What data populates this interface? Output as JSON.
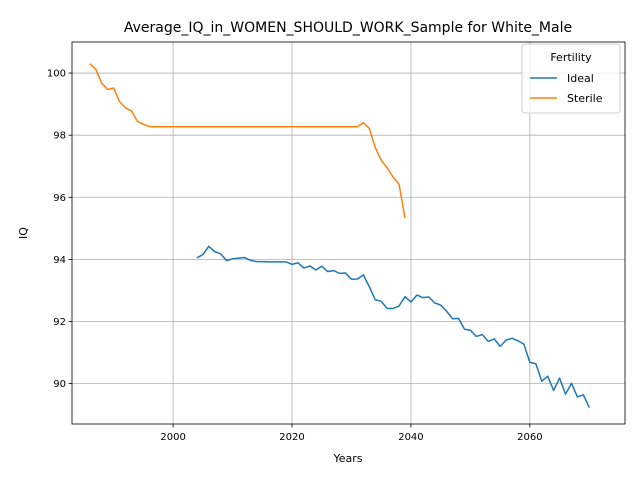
{
  "chart_data": {
    "type": "line",
    "title": "Average_IQ_in_WOMEN_SHOULD_WORK_Sample for White_Male",
    "xlabel": "Years",
    "ylabel": "IQ",
    "xlim": [
      1983,
      2076
    ],
    "ylim": [
      88.7,
      101.0
    ],
    "xticks": [
      2000,
      2020,
      2040,
      2060
    ],
    "yticks": [
      90,
      92,
      94,
      96,
      98,
      100
    ],
    "grid": true,
    "legend": {
      "title": "Fertility",
      "position": "top-right"
    },
    "colors": {
      "Ideal": "#1f77b4",
      "Sterile": "#ff7f0e"
    },
    "series": [
      {
        "name": "Ideal",
        "x": [
          2004,
          2005,
          2006,
          2007,
          2008,
          2009,
          2010,
          2011,
          2012,
          2013,
          2014,
          2015,
          2016,
          2017,
          2018,
          2019,
          2020,
          2021,
          2022,
          2023,
          2024,
          2025,
          2026,
          2027,
          2028,
          2029,
          2030,
          2031,
          2032,
          2033,
          2034,
          2035,
          2036,
          2037,
          2038,
          2039,
          2040,
          2041,
          2042,
          2043,
          2044,
          2045,
          2046,
          2047,
          2048,
          2049,
          2050,
          2051,
          2052,
          2053,
          2054,
          2055,
          2056,
          2057,
          2058,
          2059,
          2060,
          2061,
          2062,
          2063,
          2064,
          2065,
          2066,
          2067,
          2068,
          2069,
          2070
        ],
        "y": [
          94.05,
          94.15,
          94.42,
          94.25,
          94.18,
          93.96,
          94.02,
          94.04,
          94.06,
          93.97,
          93.93,
          93.93,
          93.92,
          93.92,
          93.92,
          93.92,
          93.84,
          93.89,
          93.72,
          93.79,
          93.66,
          93.78,
          93.61,
          93.64,
          93.55,
          93.56,
          93.36,
          93.37,
          93.5,
          93.12,
          92.7,
          92.65,
          92.42,
          92.42,
          92.5,
          92.8,
          92.63,
          92.85,
          92.77,
          92.79,
          92.6,
          92.53,
          92.33,
          92.09,
          92.1,
          91.75,
          91.72,
          91.52,
          91.58,
          91.36,
          91.44,
          91.2,
          91.4,
          91.46,
          91.38,
          91.27,
          90.68,
          90.64,
          90.08,
          90.24,
          89.78,
          90.18,
          89.66,
          90.01,
          89.57,
          89.64,
          89.23
        ]
      },
      {
        "name": "Sterile",
        "x": [
          1986,
          1987,
          1988,
          1989,
          1990,
          1991,
          1992,
          1993,
          1994,
          1995,
          1996,
          1997,
          1998,
          1999,
          2000,
          2001,
          2002,
          2003,
          2004,
          2005,
          2006,
          2007,
          2008,
          2009,
          2010,
          2011,
          2012,
          2013,
          2014,
          2015,
          2016,
          2017,
          2018,
          2019,
          2020,
          2021,
          2022,
          2023,
          2024,
          2025,
          2026,
          2027,
          2028,
          2029,
          2030,
          2031,
          2032,
          2033,
          2034,
          2035,
          2036,
          2037,
          2038,
          2039
        ],
        "y": [
          100.3,
          100.12,
          99.67,
          99.47,
          99.52,
          99.08,
          98.88,
          98.78,
          98.45,
          98.35,
          98.28,
          98.27,
          98.27,
          98.27,
          98.27,
          98.27,
          98.27,
          98.27,
          98.27,
          98.27,
          98.27,
          98.27,
          98.27,
          98.27,
          98.27,
          98.27,
          98.27,
          98.27,
          98.27,
          98.27,
          98.27,
          98.27,
          98.27,
          98.27,
          98.27,
          98.27,
          98.27,
          98.27,
          98.27,
          98.27,
          98.27,
          98.27,
          98.27,
          98.27,
          98.27,
          98.27,
          98.4,
          98.22,
          97.6,
          97.2,
          96.95,
          96.65,
          96.42,
          95.33
        ]
      }
    ]
  }
}
